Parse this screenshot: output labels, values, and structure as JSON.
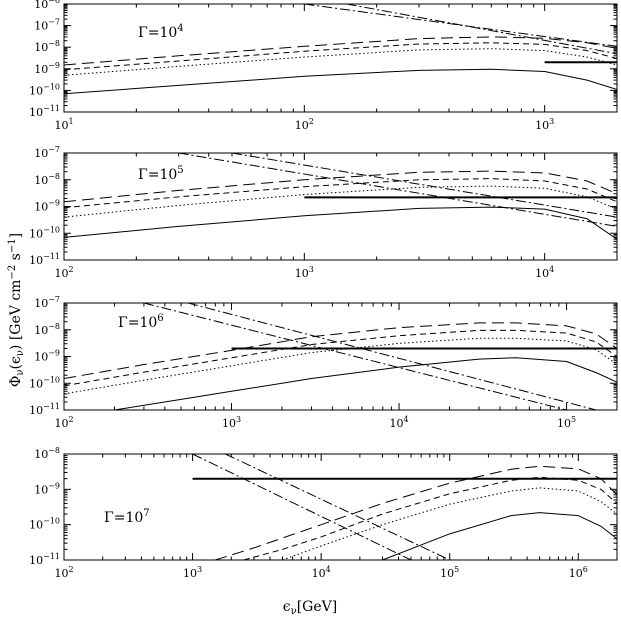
{
  "figure": {
    "x_title": "ϵ",
    "x_title_sub": "ν",
    "x_title_unit": "[GeV]",
    "y_title_main": "Φ",
    "y_title_sub": "ν",
    "y_title_arg": "(ϵ",
    "y_title_arg_sub": "ν",
    "y_title_unit": ") [GeV cm",
    "y_title_unit_exp1": "−2",
    "y_title_s": " s",
    "y_title_unit_exp2": "−1",
    "y_title_close": "]"
  },
  "chart_data": [
    {
      "type": "line",
      "label": "Γ=10",
      "label_exp": "4",
      "xscale": "log",
      "yscale": "log",
      "xlim": [
        10,
        2000
      ],
      "ylim": [
        1e-11,
        1e-06
      ],
      "x_ticks": [
        {
          "base": "10",
          "exp": "1"
        },
        {
          "base": "10",
          "exp": "2"
        },
        {
          "base": "10",
          "exp": "3"
        }
      ],
      "y_ticks": [
        {
          "base": "10",
          "exp": "−11"
        },
        {
          "base": "10",
          "exp": "−10"
        },
        {
          "base": "10",
          "exp": "−9"
        },
        {
          "base": "10",
          "exp": "−8"
        },
        {
          "base": "10",
          "exp": "−7"
        },
        {
          "base": "10",
          "exp": "−6"
        }
      ],
      "series": [
        {
          "style": "long-dash",
          "x": [
            10,
            30,
            100,
            300,
            600,
            1000,
            1500,
            2000
          ],
          "y": [
            1.5e-09,
            4e-09,
            1.1e-08,
            2.5e-08,
            3e-08,
            2.6e-08,
            1.6e-08,
            9e-09
          ]
        },
        {
          "style": "short-dash",
          "x": [
            10,
            30,
            100,
            300,
            600,
            1000,
            1500,
            2000
          ],
          "y": [
            9e-10,
            2.3e-09,
            6.5e-09,
            1.4e-08,
            1.6e-08,
            1.35e-08,
            7e-09,
            3e-09
          ]
        },
        {
          "style": "dotted",
          "x": [
            10,
            30,
            100,
            300,
            600,
            1000,
            1500,
            2000
          ],
          "y": [
            5e-10,
            1.3e-09,
            3.5e-09,
            7.5e-09,
            8.5e-09,
            7e-09,
            3.5e-09,
            1.5e-09
          ]
        },
        {
          "style": "solid",
          "x": [
            10,
            30,
            100,
            300,
            600,
            1000,
            1500,
            2000
          ],
          "y": [
            7e-11,
            1.7e-10,
            4.5e-10,
            8.5e-10,
            9.5e-10,
            7.5e-10,
            3e-10,
            1.1e-10
          ]
        },
        {
          "style": "dash-dot",
          "x": [
            100,
            2000
          ],
          "y": [
            1e-06,
            1.1e-08
          ]
        },
        {
          "style": "dash-dot",
          "x": [
            150,
            2000
          ],
          "y": [
            1e-06,
            5e-09
          ]
        },
        {
          "style": "thick",
          "x": [
            1000,
            2000
          ],
          "y": [
            2e-09,
            2e-09
          ]
        }
      ]
    },
    {
      "type": "line",
      "label": "Γ=10",
      "label_exp": "5",
      "xscale": "log",
      "yscale": "log",
      "xlim": [
        100,
        20000
      ],
      "ylim": [
        1e-11,
        1e-07
      ],
      "x_ticks": [
        {
          "base": "10",
          "exp": "2"
        },
        {
          "base": "10",
          "exp": "3"
        },
        {
          "base": "10",
          "exp": "4"
        }
      ],
      "y_ticks": [
        {
          "base": "10",
          "exp": "−11"
        },
        {
          "base": "10",
          "exp": "−10"
        },
        {
          "base": "10",
          "exp": "−9"
        },
        {
          "base": "10",
          "exp": "−8"
        },
        {
          "base": "10",
          "exp": "−7"
        }
      ],
      "series": [
        {
          "style": "long-dash",
          "x": [
            100,
            300,
            1000,
            3000,
            6000,
            10000,
            15000,
            20000
          ],
          "y": [
            1.5e-09,
            4e-09,
            1e-08,
            1.9e-08,
            2.1e-08,
            1.8e-08,
            9e-09,
            3e-09
          ]
        },
        {
          "style": "short-dash",
          "x": [
            100,
            300,
            1000,
            3000,
            6000,
            10000,
            15000,
            20000
          ],
          "y": [
            9e-10,
            2.3e-09,
            5.5e-09,
            1e-08,
            1.1e-08,
            9e-09,
            4.5e-09,
            1.5e-09
          ]
        },
        {
          "style": "dotted",
          "x": [
            100,
            300,
            1000,
            3000,
            6000,
            10000,
            15000,
            20000
          ],
          "y": [
            4e-10,
            1.1e-09,
            2.8e-09,
            5.2e-09,
            5.8e-09,
            4.8e-09,
            2.3e-09,
            8e-10
          ]
        },
        {
          "style": "solid",
          "x": [
            100,
            300,
            1000,
            3000,
            6000,
            10000,
            15000,
            20000
          ],
          "y": [
            7e-11,
            1.8e-10,
            4.5e-10,
            8.5e-10,
            9.5e-10,
            8e-10,
            3.5e-10,
            6e-11
          ]
        },
        {
          "style": "dash-dot",
          "x": [
            300,
            20000
          ],
          "y": [
            1e-07,
            1.8e-10
          ]
        },
        {
          "style": "dash-dot",
          "x": [
            500,
            20000
          ],
          "y": [
            1e-07,
            4e-10
          ]
        },
        {
          "style": "thick",
          "x": [
            1000,
            20000
          ],
          "y": [
            2.2e-09,
            2.2e-09
          ]
        }
      ]
    },
    {
      "type": "line",
      "label": "Γ=10",
      "label_exp": "6",
      "xscale": "log",
      "yscale": "log",
      "xlim": [
        100,
        200000
      ],
      "ylim": [
        1e-11,
        1e-07
      ],
      "x_ticks": [
        {
          "base": "10",
          "exp": "2"
        },
        {
          "base": "10",
          "exp": "3"
        },
        {
          "base": "10",
          "exp": "4"
        },
        {
          "base": "10",
          "exp": "5"
        }
      ],
      "y_ticks": [
        {
          "base": "10",
          "exp": "−11"
        },
        {
          "base": "10",
          "exp": "−10"
        },
        {
          "base": "10",
          "exp": "−9"
        },
        {
          "base": "10",
          "exp": "−8"
        },
        {
          "base": "10",
          "exp": "−7"
        }
      ],
      "series": [
        {
          "style": "long-dash",
          "x": [
            100,
            300,
            1000,
            3000,
            10000,
            30000,
            50000,
            100000,
            150000,
            200000
          ],
          "y": [
            1.5e-10,
            5e-10,
            1.7e-09,
            5.5e-09,
            1.2e-08,
            1.8e-08,
            1.8e-08,
            1.4e-08,
            7e-09,
            2e-09
          ]
        },
        {
          "style": "short-dash",
          "x": [
            100,
            300,
            1000,
            3000,
            10000,
            30000,
            50000,
            100000,
            150000,
            200000
          ],
          "y": [
            8e-11,
            2.6e-10,
            9e-10,
            2.8e-09,
            6e-09,
            9.5e-09,
            9.5e-09,
            7.5e-09,
            3.5e-09,
            1e-09
          ]
        },
        {
          "style": "dotted",
          "x": [
            100,
            300,
            1000,
            3000,
            10000,
            30000,
            50000,
            100000,
            150000,
            200000
          ],
          "y": [
            4e-11,
            1.3e-10,
            4.5e-10,
            1.4e-09,
            3.1e-09,
            4.8e-09,
            4.8e-09,
            3.8e-09,
            1.8e-09,
            5e-10
          ]
        },
        {
          "style": "solid",
          "x": [
            200,
            500,
            1000,
            3000,
            10000,
            30000,
            50000,
            100000,
            150000,
            200000
          ],
          "y": [
            1e-11,
            2.5e-11,
            5e-11,
            1.5e-10,
            4e-10,
            8e-10,
            9e-10,
            6.5e-10,
            2.5e-10,
            1.1e-10
          ]
        },
        {
          "style": "dash-dot",
          "x": [
            300,
            100000
          ],
          "y": [
            1e-07,
            1e-11
          ]
        },
        {
          "style": "dash-dot",
          "x": [
            550,
            150000
          ],
          "y": [
            1e-07,
            1e-11
          ]
        },
        {
          "style": "thick",
          "x": [
            1000,
            200000
          ],
          "y": [
            2e-09,
            2e-09
          ]
        }
      ]
    },
    {
      "type": "line",
      "label": "Γ=10",
      "label_exp": "7",
      "xscale": "log",
      "yscale": "log",
      "xlim": [
        100,
        2000000
      ],
      "ylim": [
        1e-11,
        1e-08
      ],
      "x_ticks": [
        {
          "base": "10",
          "exp": "2"
        },
        {
          "base": "10",
          "exp": "3"
        },
        {
          "base": "10",
          "exp": "4"
        },
        {
          "base": "10",
          "exp": "5"
        },
        {
          "base": "10",
          "exp": "6"
        }
      ],
      "y_ticks": [
        {
          "base": "10",
          "exp": "−11"
        },
        {
          "base": "10",
          "exp": "−10"
        },
        {
          "base": "10",
          "exp": "−9"
        },
        {
          "base": "10",
          "exp": "−8"
        }
      ],
      "series": [
        {
          "style": "long-dash",
          "x": [
            1500,
            3000,
            10000,
            30000,
            100000,
            300000,
            500000,
            1000000,
            1500000,
            2000000
          ],
          "y": [
            1e-11,
            2.2e-11,
            1e-10,
            4e-10,
            1.5e-09,
            3.7e-09,
            4.5e-09,
            3.8e-09,
            2e-09,
            7e-10
          ]
        },
        {
          "style": "short-dash",
          "x": [
            2500,
            5000,
            10000,
            30000,
            100000,
            300000,
            500000,
            1000000,
            1500000,
            2000000
          ],
          "y": [
            1e-11,
            2e-11,
            4.5e-11,
            2e-10,
            7.5e-10,
            1.8e-09,
            2.2e-09,
            1.8e-09,
            1e-09,
            4e-10
          ]
        },
        {
          "style": "dotted",
          "x": [
            5000,
            10000,
            30000,
            100000,
            300000,
            500000,
            1000000,
            1500000,
            2000000
          ],
          "y": [
            1e-11,
            2.5e-11,
            1e-10,
            3.8e-10,
            9e-10,
            1.1e-09,
            9e-10,
            4.5e-10,
            2e-10
          ]
        },
        {
          "style": "solid",
          "x": [
            30000,
            100000,
            300000,
            500000,
            1000000,
            1500000,
            2000000
          ],
          "y": [
            1e-11,
            5.5e-11,
            1.8e-10,
            2.2e-10,
            1.8e-10,
            9e-11,
            4e-11
          ]
        },
        {
          "style": "dash-dot",
          "x": [
            1000,
            50000
          ],
          "y": [
            1e-08,
            1e-11
          ]
        },
        {
          "style": "dash-dot",
          "x": [
            1800,
            100000
          ],
          "y": [
            1e-08,
            1e-11
          ]
        },
        {
          "style": "thick",
          "x": [
            1000,
            2000000
          ],
          "y": [
            2e-09,
            2e-09
          ]
        }
      ]
    }
  ]
}
